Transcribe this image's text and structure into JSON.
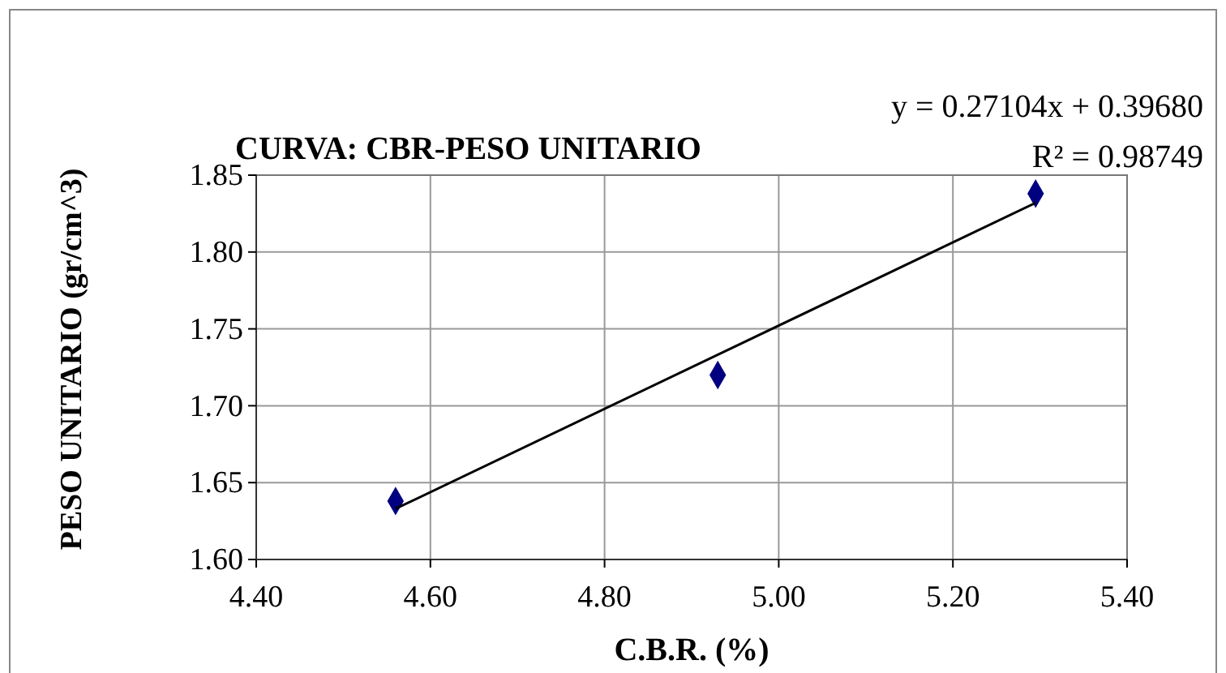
{
  "chart_data": {
    "type": "scatter",
    "title": "CURVA: CBR-PESO UNITARIO",
    "xlabel": "C.B.R. (%)",
    "ylabel": "PESO UNITARIO (gr/cm^3)",
    "annotations": [
      "y = 0.27104x + 0.39680",
      "R² = 0.98749"
    ],
    "series": [
      {
        "color": "#000080",
        "x": [
          4.56,
          4.93,
          5.295
        ],
        "values": [
          1.638,
          1.72,
          1.838
        ],
        "marker": "diamond"
      },
      {
        "type": "line",
        "color": "#000000",
        "x": [
          4.56,
          5.295
        ],
        "values": [
          1.633,
          1.832
        ],
        "marker": "none"
      }
    ],
    "xlim": [
      4.4,
      5.4
    ],
    "xticks": [
      {
        "value": 4.4,
        "label": "4.40"
      },
      {
        "value": 4.6,
        "label": "4.60"
      },
      {
        "value": 4.8,
        "label": "4.80"
      },
      {
        "value": 5.0,
        "label": "5.00"
      },
      {
        "value": 5.2,
        "label": "5.20"
      },
      {
        "value": 5.4,
        "label": "5.40"
      }
    ],
    "ylim": [
      1.6,
      1.85
    ],
    "yticks": [
      {
        "value": 1.6,
        "label": "1.60"
      },
      {
        "value": 1.65,
        "label": "1.65"
      },
      {
        "value": 1.7,
        "label": "1.70"
      },
      {
        "value": 1.75,
        "label": "1.75"
      },
      {
        "value": 1.8,
        "label": "1.80"
      },
      {
        "value": 1.85,
        "label": "1.85"
      }
    ],
    "grid": true
  }
}
